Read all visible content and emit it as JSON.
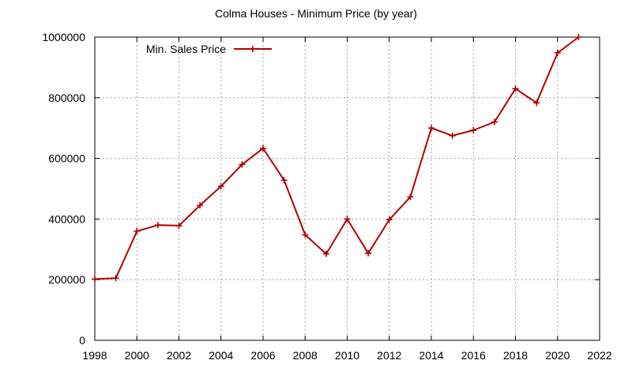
{
  "chart_data": {
    "type": "line",
    "title": "Colma Houses - Minimum Price (by year)",
    "xlabel": "",
    "ylabel": "",
    "xlim": [
      1998,
      2022
    ],
    "ylim": [
      0,
      1000000
    ],
    "xticks": [
      1998,
      2000,
      2002,
      2004,
      2006,
      2008,
      2010,
      2012,
      2014,
      2016,
      2018,
      2020,
      2022
    ],
    "yticks": [
      0,
      200000,
      400000,
      600000,
      800000,
      1000000
    ],
    "grid": true,
    "legend_position": "top-left",
    "series": [
      {
        "name": "Min. Sales Price",
        "color": "#b00000",
        "marker": "plus",
        "x": [
          1998,
          1999,
          2000,
          2001,
          2002,
          2003,
          2004,
          2005,
          2006,
          2007,
          2008,
          2009,
          2010,
          2011,
          2012,
          2013,
          2014,
          2015,
          2016,
          2017,
          2018,
          2019,
          2020,
          2021
        ],
        "y": [
          202000,
          205000,
          360000,
          380000,
          378000,
          445000,
          508000,
          580000,
          633000,
          528000,
          348000,
          285000,
          400000,
          287000,
          398000,
          473000,
          700000,
          675000,
          693000,
          720000,
          830000,
          783000,
          948000,
          1000000
        ]
      }
    ]
  }
}
